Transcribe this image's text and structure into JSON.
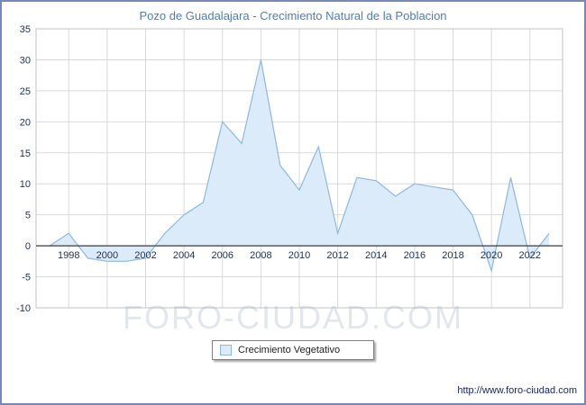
{
  "title": "Pozo de Guadalajara - Crecimiento Natural de la Poblacion",
  "watermark": "FORO-CIUDAD.COM",
  "footer_url": "http://www.foro-ciudad.com",
  "legend": {
    "label": "Crecimiento Vegetativo"
  },
  "colors": {
    "frame": "#7589b4",
    "title": "#4a7ebd",
    "grid": "#d9d9d9",
    "plot_border": "#c3c3c3",
    "zero_line": "#3a3a3a",
    "line": "#8fb8e0",
    "fill": "#dcebf9",
    "tick_text": "#223355"
  },
  "chart_data": {
    "type": "area",
    "title": "Pozo de Guadalajara - Crecimiento Natural de la Poblacion",
    "xlabel": "",
    "ylabel": "",
    "ylim": [
      -10,
      35
    ],
    "ytick_step": 5,
    "xticks": [
      1998,
      2000,
      2002,
      2004,
      2006,
      2008,
      2010,
      2012,
      2014,
      2016,
      2018,
      2020,
      2022
    ],
    "baseline": 0,
    "grid": true,
    "legend_position": "bottom",
    "series": [
      {
        "name": "Crecimiento Vegetativo",
        "x": [
          1997,
          1998,
          1999,
          2000,
          2001,
          2002,
          2003,
          2004,
          2005,
          2006,
          2007,
          2008,
          2009,
          2010,
          2011,
          2012,
          2013,
          2014,
          2015,
          2016,
          2017,
          2018,
          2019,
          2020,
          2021,
          2022,
          2023
        ],
        "values": [
          0,
          2,
          -2,
          -2.5,
          -2.5,
          -2,
          2,
          5,
          7,
          20,
          16.5,
          30,
          13,
          9,
          16,
          2,
          11,
          10.5,
          8,
          10,
          9.5,
          9,
          5,
          -4,
          11,
          -2,
          2
        ]
      }
    ]
  }
}
